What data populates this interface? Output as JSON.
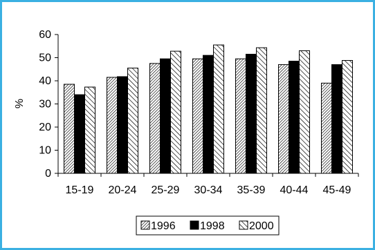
{
  "chart_data": {
    "type": "bar",
    "title": "",
    "xlabel": "",
    "ylabel": "%",
    "ylim": [
      0,
      60
    ],
    "yticks": [
      0,
      10,
      20,
      30,
      40,
      50,
      60
    ],
    "grid": false,
    "legend_position": "bottom",
    "categories": [
      "15-19",
      "20-24",
      "25-29",
      "30-34",
      "35-39",
      "40-44",
      "45-49"
    ],
    "series": [
      {
        "name": "1996",
        "pattern": "dense-diagonal-hatch",
        "values": [
          38.5,
          41.5,
          47.5,
          49.5,
          49.5,
          47,
          39
        ]
      },
      {
        "name": "1998",
        "pattern": "solid-black",
        "values": [
          34,
          41.8,
          49.5,
          51,
          51.5,
          48.5,
          47
        ]
      },
      {
        "name": "2000",
        "pattern": "wide-diagonal-hatch",
        "values": [
          37.3,
          45.5,
          52.8,
          55.5,
          54.3,
          53,
          48.8
        ]
      }
    ],
    "colors": {
      "frame": "#3ab0e2",
      "bars": "#000000"
    }
  }
}
